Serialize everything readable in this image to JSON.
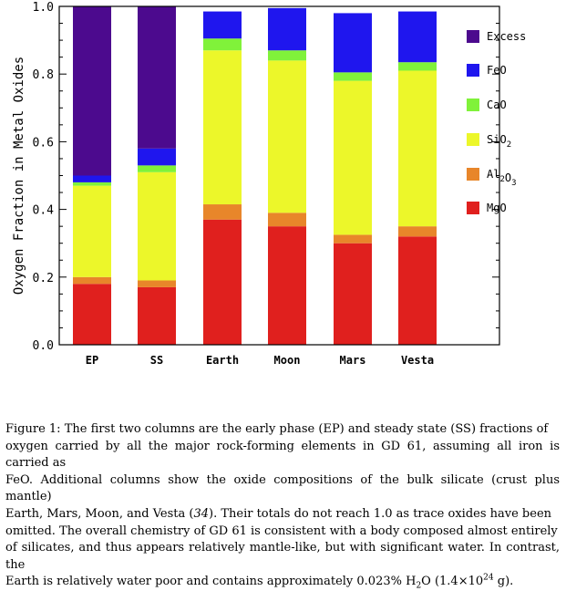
{
  "chart_data": {
    "type": "bar",
    "stacked": true,
    "categories": [
      "EP",
      "SS",
      "Earth",
      "Moon",
      "Mars",
      "Vesta"
    ],
    "ylabel": "Oxygen Fraction in Metal Oxides",
    "ylim": [
      0,
      1.0
    ],
    "yticks": [
      "0.0",
      "0.2",
      "0.4",
      "0.6",
      "0.8",
      "1.0"
    ],
    "legend_position": "right",
    "series": [
      {
        "name": "MgO",
        "key": "mgo",
        "color": "#e0201e",
        "values": [
          0.18,
          0.17,
          0.37,
          0.35,
          0.3,
          0.32
        ]
      },
      {
        "name": "Al2O3",
        "key": "al2o3",
        "color": "#e8862a",
        "values": [
          0.02,
          0.02,
          0.045,
          0.04,
          0.025,
          0.03
        ]
      },
      {
        "name": "SiO2",
        "key": "sio2",
        "color": "#ecf72a",
        "values": [
          0.27,
          0.32,
          0.455,
          0.45,
          0.455,
          0.46
        ]
      },
      {
        "name": "CaO",
        "key": "cao",
        "color": "#80f23a",
        "values": [
          0.01,
          0.02,
          0.035,
          0.03,
          0.025,
          0.025
        ]
      },
      {
        "name": "FeO",
        "key": "feo",
        "color": "#1f16ee",
        "values": [
          0.02,
          0.05,
          0.08,
          0.125,
          0.175,
          0.15
        ]
      },
      {
        "name": "Excess",
        "key": "excess",
        "color": "#4c0a8e",
        "values": [
          0.5,
          0.42,
          0.0,
          0.0,
          0.0,
          0.0
        ]
      }
    ],
    "legend_order": [
      "Excess",
      "FeO",
      "CaO",
      "SiO2",
      "Al2O3",
      "MgO"
    ]
  },
  "caption": {
    "line1": "Figure 1: The first two columns are the early phase (EP) and steady state (SS) fractions of",
    "line2": "oxygen carried by all the major rock-forming elements in GD 61, assuming all iron is carried as",
    "line3": "FeO. Additional columns show the oxide compositions of the bulk silicate (crust plus mantle)",
    "line4a": "Earth, Mars, Moon, and Vesta (",
    "line4ref": "34",
    "line4b": ").  Their totals do not reach 1.0 as trace oxides have been",
    "line5": "omitted.  The overall chemistry of GD 61 is consistent with a body composed almost entirely",
    "line6": "of silicates, and thus appears relatively mantle-like, but with significant water.  In contrast, the",
    "line7a": "Earth is relatively water poor and contains approximately 0.023% H",
    "line7sub": "2",
    "line7b": "O (1.4×10",
    "line7sup": "24",
    "line7c": " g)."
  }
}
